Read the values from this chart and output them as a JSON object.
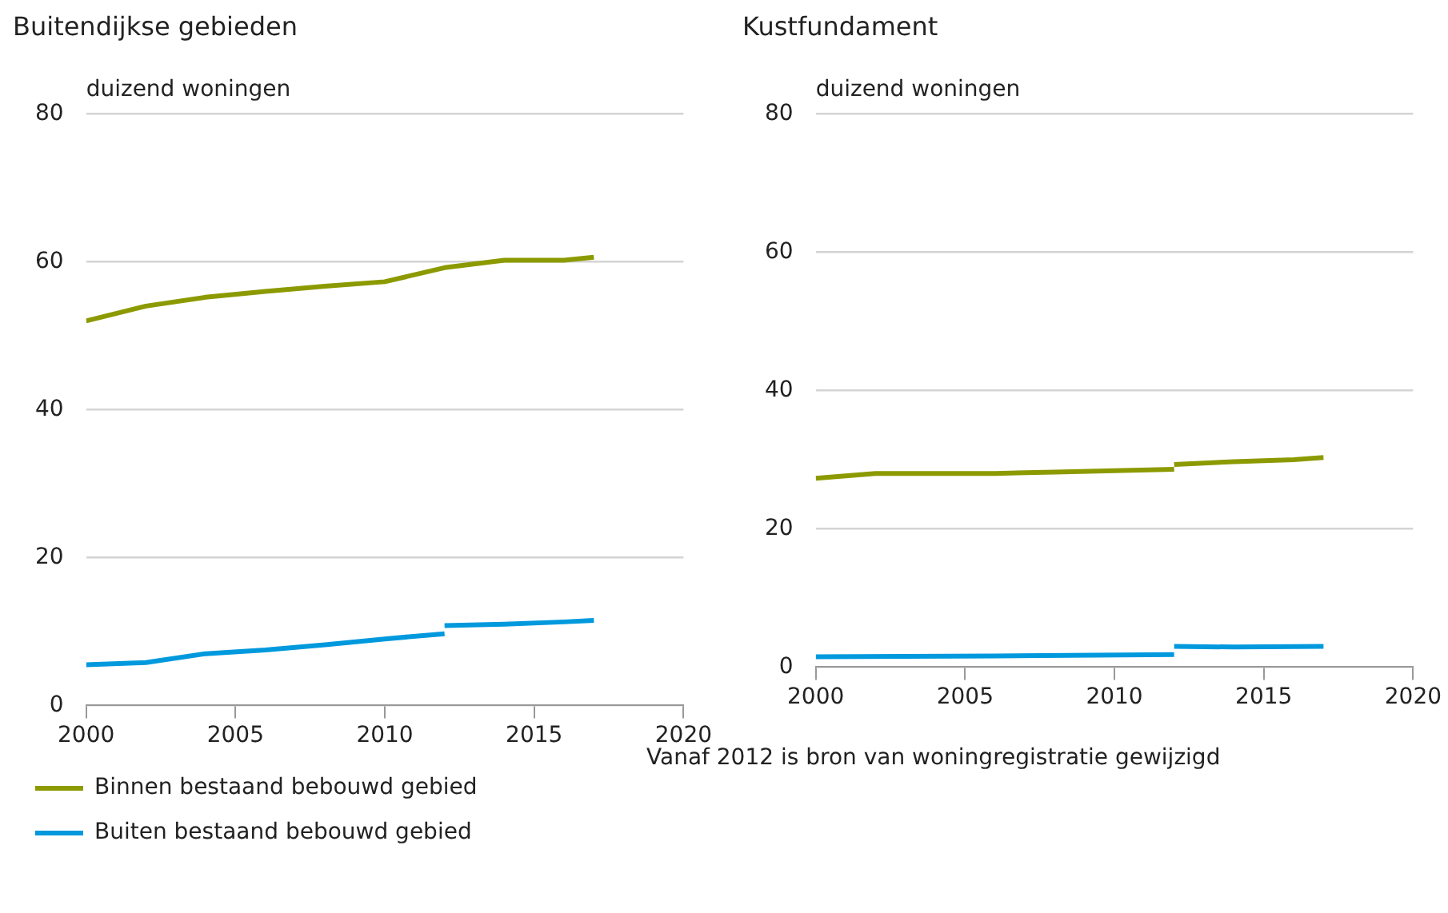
{
  "chart_data": [
    {
      "type": "line",
      "title": "Buitendijkse gebieden",
      "ylabel": "duizend woningen",
      "xlim": [
        2000,
        2020
      ],
      "xticks": [
        2000,
        2005,
        2010,
        2015,
        2020
      ],
      "ylim": [
        0,
        80
      ],
      "yticks": [
        0,
        20,
        40,
        60,
        80
      ],
      "grid": "y",
      "legend": "bottom",
      "marker": "none",
      "line_style": "solid",
      "series": [
        {
          "name": "Binnen bestaand bebouwd gebied",
          "color": "#8c9a00",
          "x": [
            2000,
            2002,
            2004,
            2006,
            2008,
            2010,
            2012,
            2014,
            2016,
            2017
          ],
          "values": [
            52,
            54,
            55.2,
            56,
            56.7,
            57.3,
            59.2,
            60.2,
            60.2,
            60.6
          ]
        },
        {
          "name": "Buiten bestaand bebouwd gebied",
          "color": "#0099dd",
          "x": [
            2000,
            2002,
            2004,
            2006,
            2008,
            2010,
            2012
          ],
          "values": [
            5.5,
            5.8,
            7.0,
            7.5,
            8.2,
            9.0,
            9.7
          ]
        },
        {
          "color": "#0099dd",
          "x": [
            2012,
            2014,
            2016,
            2017
          ],
          "values": [
            10.8,
            11.0,
            11.3,
            11.5
          ]
        }
      ]
    },
    {
      "type": "line",
      "title": "Kustfundament",
      "ylabel": "duizend woningen",
      "xlim": [
        2000,
        2020
      ],
      "xticks": [
        2000,
        2005,
        2010,
        2015,
        2020
      ],
      "ylim": [
        0,
        80
      ],
      "yticks": [
        0,
        20,
        40,
        60,
        80
      ],
      "grid": "y",
      "marker": "none",
      "line_style": "solid",
      "annotations": [
        "Vanaf 2012 is bron van woningregistratie gewijzigd"
      ],
      "series": [
        {
          "color": "#8c9a00",
          "x": [
            2000,
            2002,
            2006,
            2008,
            2010,
            2012
          ],
          "values": [
            27.3,
            28.0,
            28.0,
            28.2,
            28.4,
            28.6
          ]
        },
        {
          "color": "#8c9a00",
          "x": [
            2012,
            2014,
            2016,
            2017
          ],
          "values": [
            29.3,
            29.7,
            30.0,
            30.3
          ]
        },
        {
          "color": "#0099dd",
          "x": [
            2000,
            2006,
            2012
          ],
          "values": [
            1.5,
            1.6,
            1.8
          ]
        },
        {
          "color": "#0099dd",
          "x": [
            2012,
            2014,
            2017
          ],
          "values": [
            3.0,
            2.9,
            3.0
          ]
        }
      ]
    }
  ]
}
